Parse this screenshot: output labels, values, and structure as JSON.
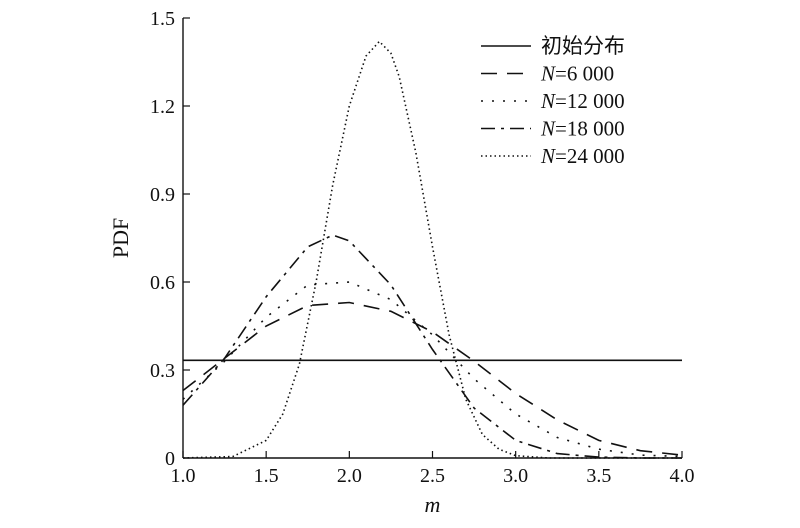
{
  "chart_data": {
    "type": "line",
    "xlabel": "m",
    "ylabel": "PDF",
    "xlim": [
      1.0,
      4.0
    ],
    "ylim": [
      0,
      1.5
    ],
    "x_ticks": [
      "1.0",
      "1.5",
      "2.0",
      "2.5",
      "3.0",
      "3.5",
      "4.0"
    ],
    "y_ticks": [
      "0",
      "0.3",
      "0.6",
      "0.9",
      "1.2",
      "1.5"
    ],
    "grid": false,
    "legend_position": "top-right",
    "series": [
      {
        "name": "初始分布",
        "legend_prefix": "",
        "legend_rest": "初始分布",
        "dash": "",
        "x": [
          1.0,
          4.0
        ],
        "y": [
          0.333,
          0.333
        ]
      },
      {
        "name": "N=6 000",
        "legend_prefix": "N",
        "legend_rest": "=6 000",
        "dash": "16 10",
        "x": [
          1.0,
          1.25,
          1.5,
          1.75,
          2.0,
          2.25,
          2.5,
          2.75,
          3.0,
          3.25,
          3.5,
          3.75,
          4.0
        ],
        "y": [
          0.23,
          0.34,
          0.45,
          0.52,
          0.53,
          0.5,
          0.43,
          0.33,
          0.22,
          0.13,
          0.06,
          0.025,
          0.01
        ]
      },
      {
        "name": "N=12 000",
        "legend_prefix": "N",
        "legend_rest": "=12 000",
        "dash": "2 9",
        "x": [
          1.0,
          1.25,
          1.5,
          1.75,
          2.0,
          2.25,
          2.5,
          2.75,
          3.0,
          3.25,
          3.5,
          3.75,
          4.0
        ],
        "y": [
          0.2,
          0.33,
          0.48,
          0.59,
          0.6,
          0.54,
          0.42,
          0.27,
          0.15,
          0.07,
          0.03,
          0.01,
          0.005
        ]
      },
      {
        "name": "N=18 000",
        "legend_prefix": "N",
        "legend_rest": "=18 000",
        "dash": "14 6 3 6",
        "x": [
          1.0,
          1.25,
          1.5,
          1.75,
          1.9,
          2.0,
          2.25,
          2.5,
          2.75,
          3.0,
          3.25,
          3.5,
          3.75,
          4.0
        ],
        "y": [
          0.18,
          0.34,
          0.55,
          0.72,
          0.76,
          0.74,
          0.59,
          0.37,
          0.17,
          0.06,
          0.015,
          0.003,
          0.0,
          0.0
        ]
      },
      {
        "name": "N=24 000",
        "legend_prefix": "N",
        "legend_rest": "=24 000",
        "dash": "1.5 3",
        "x": [
          1.0,
          1.3,
          1.5,
          1.6,
          1.7,
          1.8,
          1.9,
          2.0,
          2.1,
          2.18,
          2.25,
          2.3,
          2.4,
          2.5,
          2.6,
          2.7,
          2.8,
          2.9,
          3.0,
          3.2,
          4.0
        ],
        "y": [
          0.0,
          0.005,
          0.06,
          0.15,
          0.32,
          0.6,
          0.93,
          1.2,
          1.37,
          1.42,
          1.38,
          1.3,
          1.04,
          0.72,
          0.42,
          0.2,
          0.08,
          0.03,
          0.008,
          0.0,
          0.0
        ]
      }
    ]
  }
}
